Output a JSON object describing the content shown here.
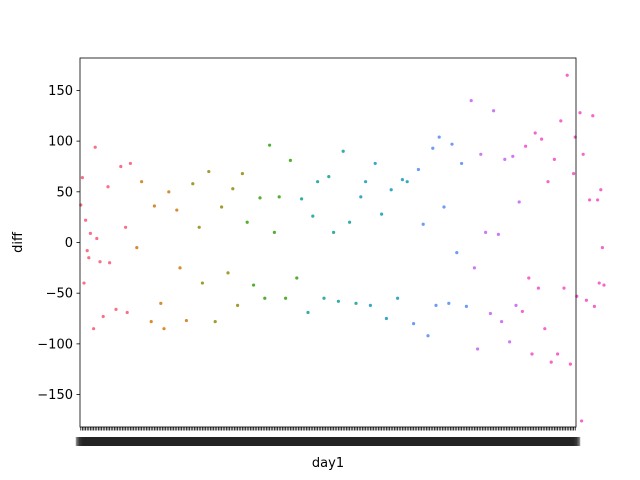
{
  "chart_data": {
    "type": "scatter",
    "xlabel": "day1",
    "ylabel": "diff",
    "ylim": [
      -182,
      182
    ],
    "y_ticks": [
      -150,
      -100,
      -50,
      0,
      50,
      100,
      150
    ],
    "y_tick_labels": [
      "−150",
      "−100",
      "−50",
      "0",
      "50",
      "100",
      "150"
    ],
    "x_tick_labels_legible": false,
    "grid": false,
    "legend": "none",
    "palette": [
      "#f77189",
      "#d58c32",
      "#a39b32",
      "#50b131",
      "#36ada4",
      "#38a9c5",
      "#6e9bf4",
      "#cc7af4",
      "#f565cc"
    ],
    "points_count": 310,
    "points": [
      {
        "x": 0,
        "y": 37
      },
      {
        "x": 1,
        "y": 64
      },
      {
        "x": 2,
        "y": -40
      },
      {
        "x": 3,
        "y": 22
      },
      {
        "x": 4,
        "y": -8
      },
      {
        "x": 5,
        "y": -15
      },
      {
        "x": 6,
        "y": 9
      },
      {
        "x": 8,
        "y": -85
      },
      {
        "x": 9,
        "y": 94
      },
      {
        "x": 10,
        "y": 4
      },
      {
        "x": 12,
        "y": -19
      },
      {
        "x": 14,
        "y": -73
      },
      {
        "x": 17,
        "y": 55
      },
      {
        "x": 18,
        "y": -20
      },
      {
        "x": 22,
        "y": -66
      },
      {
        "x": 25,
        "y": 75
      },
      {
        "x": 28,
        "y": 15
      },
      {
        "x": 29,
        "y": -69
      },
      {
        "x": 31,
        "y": 78
      },
      {
        "x": 35,
        "y": -5
      },
      {
        "x": 38,
        "y": 60
      },
      {
        "x": 44,
        "y": -78
      },
      {
        "x": 46,
        "y": 36
      },
      {
        "x": 50,
        "y": -60
      },
      {
        "x": 52,
        "y": -85
      },
      {
        "x": 55,
        "y": 50
      },
      {
        "x": 60,
        "y": 32
      },
      {
        "x": 62,
        "y": -25
      },
      {
        "x": 66,
        "y": -77
      },
      {
        "x": 70,
        "y": 58
      },
      {
        "x": 74,
        "y": 15
      },
      {
        "x": 76,
        "y": -40
      },
      {
        "x": 80,
        "y": 70
      },
      {
        "x": 84,
        "y": -78
      },
      {
        "x": 88,
        "y": 35
      },
      {
        "x": 92,
        "y": -30
      },
      {
        "x": 95,
        "y": 53
      },
      {
        "x": 98,
        "y": -62
      },
      {
        "x": 101,
        "y": 68
      },
      {
        "x": 104,
        "y": 20
      },
      {
        "x": 108,
        "y": -42
      },
      {
        "x": 112,
        "y": 44
      },
      {
        "x": 115,
        "y": -55
      },
      {
        "x": 118,
        "y": 96
      },
      {
        "x": 121,
        "y": 10
      },
      {
        "x": 124,
        "y": 45
      },
      {
        "x": 128,
        "y": -55
      },
      {
        "x": 131,
        "y": 81
      },
      {
        "x": 135,
        "y": -35
      },
      {
        "x": 138,
        "y": 43
      },
      {
        "x": 142,
        "y": -69
      },
      {
        "x": 145,
        "y": 26
      },
      {
        "x": 148,
        "y": 60
      },
      {
        "x": 152,
        "y": -55
      },
      {
        "x": 155,
        "y": 65
      },
      {
        "x": 158,
        "y": 10
      },
      {
        "x": 161,
        "y": -58
      },
      {
        "x": 164,
        "y": 90
      },
      {
        "x": 168,
        "y": 20
      },
      {
        "x": 172,
        "y": -60
      },
      {
        "x": 175,
        "y": 45
      },
      {
        "x": 178,
        "y": 60
      },
      {
        "x": 181,
        "y": -62
      },
      {
        "x": 184,
        "y": 78
      },
      {
        "x": 188,
        "y": 28
      },
      {
        "x": 191,
        "y": -75
      },
      {
        "x": 194,
        "y": 52
      },
      {
        "x": 198,
        "y": -55
      },
      {
        "x": 201,
        "y": 62
      },
      {
        "x": 204,
        "y": 60
      },
      {
        "x": 208,
        "y": -80
      },
      {
        "x": 211,
        "y": 72
      },
      {
        "x": 214,
        "y": 18
      },
      {
        "x": 217,
        "y": -92
      },
      {
        "x": 220,
        "y": 93
      },
      {
        "x": 222,
        "y": -62
      },
      {
        "x": 224,
        "y": 104
      },
      {
        "x": 227,
        "y": 35
      },
      {
        "x": 230,
        "y": -60
      },
      {
        "x": 232,
        "y": 97
      },
      {
        "x": 235,
        "y": -10
      },
      {
        "x": 238,
        "y": 78
      },
      {
        "x": 241,
        "y": -63
      },
      {
        "x": 244,
        "y": 140
      },
      {
        "x": 246,
        "y": -25
      },
      {
        "x": 248,
        "y": -105
      },
      {
        "x": 250,
        "y": 87
      },
      {
        "x": 253,
        "y": 10
      },
      {
        "x": 256,
        "y": -70
      },
      {
        "x": 258,
        "y": 130
      },
      {
        "x": 261,
        "y": 8
      },
      {
        "x": 263,
        "y": -78
      },
      {
        "x": 265,
        "y": 82
      },
      {
        "x": 268,
        "y": -98
      },
      {
        "x": 270,
        "y": 85
      },
      {
        "x": 272,
        "y": -62
      },
      {
        "x": 274,
        "y": 40
      },
      {
        "x": 276,
        "y": -68
      },
      {
        "x": 278,
        "y": 95
      },
      {
        "x": 280,
        "y": -35
      },
      {
        "x": 282,
        "y": -110
      },
      {
        "x": 284,
        "y": 108
      },
      {
        "x": 286,
        "y": -45
      },
      {
        "x": 288,
        "y": 102
      },
      {
        "x": 290,
        "y": -85
      },
      {
        "x": 292,
        "y": 60
      },
      {
        "x": 294,
        "y": -118
      },
      {
        "x": 296,
        "y": 82
      },
      {
        "x": 298,
        "y": -110
      },
      {
        "x": 300,
        "y": 120
      },
      {
        "x": 302,
        "y": -45
      },
      {
        "x": 304,
        "y": 165
      },
      {
        "x": 306,
        "y": -120
      },
      {
        "x": 308,
        "y": 68
      },
      {
        "x": 309,
        "y": 104
      },
      {
        "x": 310,
        "y": -53
      },
      {
        "x": 312,
        "y": 128
      },
      {
        "x": 313,
        "y": -176
      },
      {
        "x": 314,
        "y": 87
      },
      {
        "x": 316,
        "y": -57
      },
      {
        "x": 318,
        "y": 42
      },
      {
        "x": 320,
        "y": 125
      },
      {
        "x": 321,
        "y": -63
      },
      {
        "x": 323,
        "y": 42
      },
      {
        "x": 324,
        "y": -40
      },
      {
        "x": 325,
        "y": 52
      },
      {
        "x": 326,
        "y": -5
      },
      {
        "x": 327,
        "y": -42
      }
    ]
  }
}
